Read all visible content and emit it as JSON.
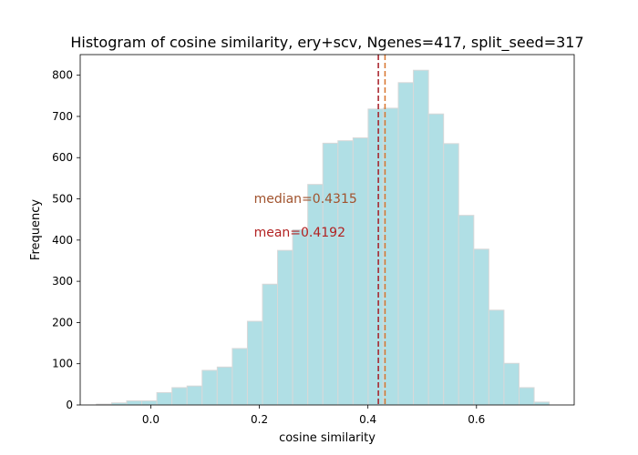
{
  "chart_data": {
    "type": "bar",
    "title": "Histogram of cosine similarity, ery+scv, Ngenes=417, split_seed=317",
    "xlabel": "cosine similarity",
    "ylabel": "Frequency",
    "xlim": [
      -0.13,
      0.78
    ],
    "ylim": [
      0,
      850
    ],
    "xticks": [
      0.0,
      0.2,
      0.4,
      0.6
    ],
    "xtick_labels": [
      "0.0",
      "0.2",
      "0.4",
      "0.6"
    ],
    "yticks": [
      0,
      100,
      200,
      300,
      400,
      500,
      600,
      700,
      800
    ],
    "ytick_labels": [
      "0",
      "100",
      "200",
      "300",
      "400",
      "500",
      "600",
      "700",
      "800"
    ],
    "bin_edges": [
      -0.1,
      -0.0722,
      -0.0444,
      -0.0166,
      0.0112,
      0.039,
      0.0668,
      0.0946,
      0.1224,
      0.1502,
      0.178,
      0.2058,
      0.2336,
      0.2614,
      0.2892,
      0.317,
      0.3448,
      0.3726,
      0.4004,
      0.4282,
      0.456,
      0.4838,
      0.5116,
      0.5394,
      0.5672,
      0.595,
      0.6228,
      0.6506,
      0.6784,
      0.7062,
      0.734
    ],
    "values": [
      2,
      5,
      10,
      10,
      30,
      42,
      46,
      84,
      92,
      137,
      203,
      293,
      375,
      425,
      535,
      635,
      641,
      648,
      718,
      720,
      782,
      812,
      706,
      634,
      460,
      378,
      230,
      101,
      42,
      7
    ],
    "bar_color": "#b0dfe5",
    "bar_edge_color": "#d8d8d8",
    "grid": false,
    "vlines": [
      {
        "label": "mean",
        "x": 0.4192,
        "color": "#a51c24"
      },
      {
        "label": "median",
        "x": 0.4315,
        "color": "#d8742c"
      }
    ],
    "annotations": [
      {
        "text": "median=0.4315",
        "x": 0.19,
        "y": 490,
        "color": "#a0522d"
      },
      {
        "text": "mean=0.4192",
        "x": 0.19,
        "y": 408,
        "color": "#b22222"
      }
    ]
  }
}
